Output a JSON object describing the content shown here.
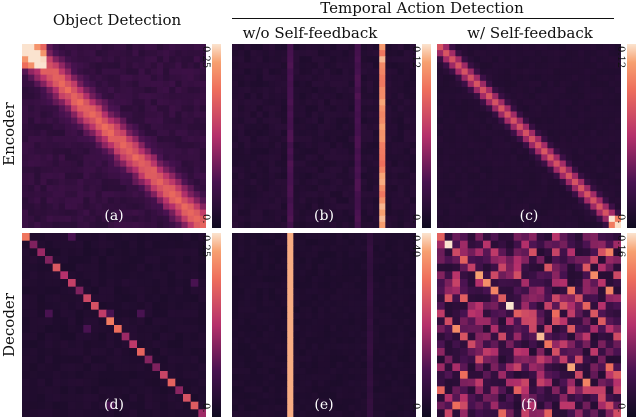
{
  "headers": {
    "object_detection": "Object Detection",
    "temporal_action_detection": "Temporal Action Detection",
    "wo_self_feedback": "w/o Self-feedback",
    "w_self_feedback": "w/ Self-feedback"
  },
  "rows": {
    "encoder": "Encoder",
    "decoder": "Decoder"
  },
  "panels": [
    {
      "id": "a",
      "label": "(a)",
      "cbar_max": "0.25",
      "cbar_min": "0."
    },
    {
      "id": "b",
      "label": "(b)",
      "cbar_max": "0.12",
      "cbar_min": "0."
    },
    {
      "id": "c",
      "label": "(c)",
      "cbar_max": "0.12",
      "cbar_min": "0."
    },
    {
      "id": "d",
      "label": "(d)",
      "cbar_max": "0.25",
      "cbar_min": "0."
    },
    {
      "id": "e",
      "label": "(e)",
      "cbar_max": "0.40",
      "cbar_min": "0."
    },
    {
      "id": "f",
      "label": "(f)",
      "cbar_max": "0.16",
      "cbar_min": "0."
    }
  ],
  "colors": {
    "cmap_low": "#0f0a1f",
    "cmap_mid": "#b5306b",
    "cmap_high": "#f7a070",
    "cmap_top": "#fbe3cf"
  }
}
